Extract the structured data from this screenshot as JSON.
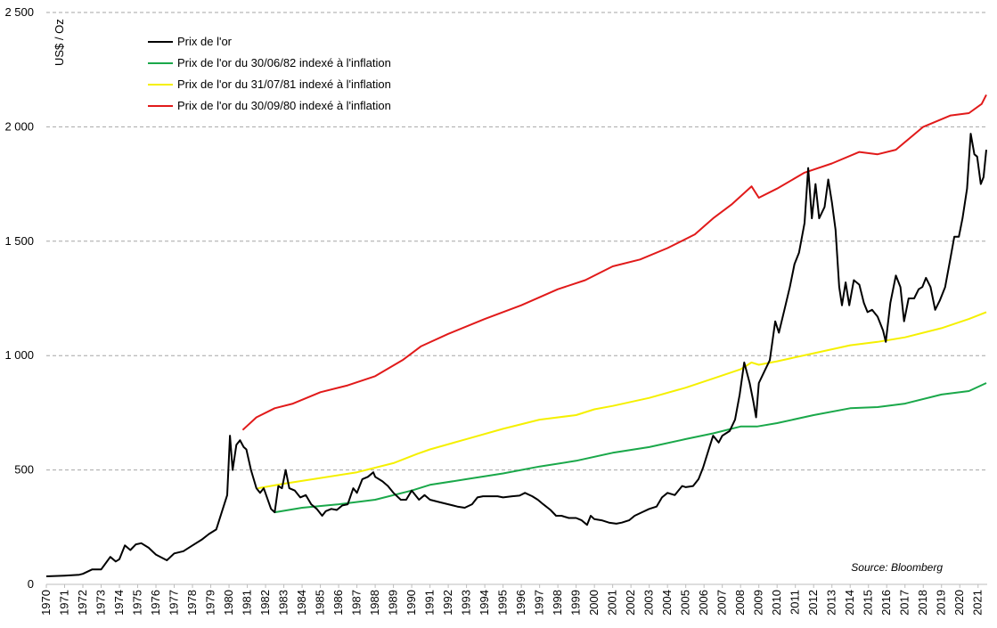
{
  "chart_data": {
    "type": "line",
    "ylabel": "US$ / Oz",
    "source": "Source: Bloomberg",
    "ylim": [
      0,
      2500
    ],
    "xlim": [
      1970,
      2021.5
    ],
    "grid": "horizontal dashed",
    "legend_position": "top-left",
    "y_ticks": [
      {
        "value": 0,
        "label": "0"
      },
      {
        "value": 500,
        "label": "500"
      },
      {
        "value": 1000,
        "label": "1 000"
      },
      {
        "value": 1500,
        "label": "1 500"
      },
      {
        "value": 2000,
        "label": "2 000"
      },
      {
        "value": 2500,
        "label": "2 500"
      }
    ],
    "x_ticks": [
      "1970",
      "1971",
      "1972",
      "1973",
      "1974",
      "1975",
      "1976",
      "1977",
      "1978",
      "1979",
      "1980",
      "1981",
      "1982",
      "1983",
      "1984",
      "1985",
      "1986",
      "1987",
      "1988",
      "1989",
      "1990",
      "1991",
      "1992",
      "1993",
      "1994",
      "1995",
      "1996",
      "1997",
      "1998",
      "1999",
      "2000",
      "2001",
      "2002",
      "2003",
      "2004",
      "2005",
      "2006",
      "2007",
      "2008",
      "2009",
      "2010",
      "2011",
      "2012",
      "2013",
      "2014",
      "2015",
      "2016",
      "2017",
      "2018",
      "2019",
      "2020",
      "2021"
    ],
    "series": [
      {
        "name": "Prix de l'or",
        "color": "#000000",
        "points": [
          [
            1970.0,
            35
          ],
          [
            1971.0,
            38
          ],
          [
            1971.8,
            42
          ],
          [
            1972.0,
            46
          ],
          [
            1972.5,
            65
          ],
          [
            1973.0,
            65
          ],
          [
            1973.5,
            120
          ],
          [
            1973.8,
            100
          ],
          [
            1974.0,
            110
          ],
          [
            1974.3,
            170
          ],
          [
            1974.6,
            150
          ],
          [
            1974.9,
            175
          ],
          [
            1975.2,
            180
          ],
          [
            1975.6,
            160
          ],
          [
            1976.0,
            130
          ],
          [
            1976.6,
            105
          ],
          [
            1977.0,
            135
          ],
          [
            1977.5,
            145
          ],
          [
            1978.0,
            170
          ],
          [
            1978.5,
            195
          ],
          [
            1978.9,
            220
          ],
          [
            1979.3,
            240
          ],
          [
            1979.7,
            340
          ],
          [
            1979.9,
            390
          ],
          [
            1980.05,
            650
          ],
          [
            1980.2,
            500
          ],
          [
            1980.4,
            610
          ],
          [
            1980.6,
            630
          ],
          [
            1980.8,
            600
          ],
          [
            1980.95,
            590
          ],
          [
            1981.2,
            500
          ],
          [
            1981.5,
            420
          ],
          [
            1981.7,
            400
          ],
          [
            1981.9,
            420
          ],
          [
            1982.3,
            330
          ],
          [
            1982.5,
            315
          ],
          [
            1982.7,
            430
          ],
          [
            1982.9,
            420
          ],
          [
            1983.1,
            500
          ],
          [
            1983.3,
            420
          ],
          [
            1983.6,
            410
          ],
          [
            1983.9,
            380
          ],
          [
            1984.2,
            390
          ],
          [
            1984.5,
            350
          ],
          [
            1984.8,
            330
          ],
          [
            1985.1,
            300
          ],
          [
            1985.3,
            320
          ],
          [
            1985.6,
            330
          ],
          [
            1985.9,
            325
          ],
          [
            1986.2,
            345
          ],
          [
            1986.5,
            350
          ],
          [
            1986.8,
            420
          ],
          [
            1987.0,
            400
          ],
          [
            1987.3,
            460
          ],
          [
            1987.6,
            470
          ],
          [
            1987.9,
            490
          ],
          [
            1988.0,
            470
          ],
          [
            1988.4,
            450
          ],
          [
            1988.7,
            430
          ],
          [
            1989.0,
            400
          ],
          [
            1989.4,
            370
          ],
          [
            1989.7,
            370
          ],
          [
            1990.0,
            410
          ],
          [
            1990.4,
            370
          ],
          [
            1990.7,
            390
          ],
          [
            1991.0,
            370
          ],
          [
            1991.5,
            360
          ],
          [
            1992.0,
            350
          ],
          [
            1992.5,
            340
          ],
          [
            1992.9,
            335
          ],
          [
            1993.3,
            350
          ],
          [
            1993.6,
            380
          ],
          [
            1993.9,
            385
          ],
          [
            1994.3,
            385
          ],
          [
            1994.7,
            385
          ],
          [
            1995.0,
            380
          ],
          [
            1995.5,
            385
          ],
          [
            1995.9,
            388
          ],
          [
            1996.2,
            400
          ],
          [
            1996.6,
            385
          ],
          [
            1996.9,
            370
          ],
          [
            1997.2,
            350
          ],
          [
            1997.6,
            325
          ],
          [
            1997.9,
            300
          ],
          [
            1998.2,
            300
          ],
          [
            1998.6,
            290
          ],
          [
            1999.0,
            290
          ],
          [
            1999.3,
            280
          ],
          [
            1999.6,
            260
          ],
          [
            1999.8,
            300
          ],
          [
            2000.0,
            285
          ],
          [
            2000.4,
            280
          ],
          [
            2000.8,
            270
          ],
          [
            2001.2,
            265
          ],
          [
            2001.5,
            270
          ],
          [
            2001.9,
            280
          ],
          [
            2002.2,
            300
          ],
          [
            2002.6,
            315
          ],
          [
            2003.0,
            330
          ],
          [
            2003.4,
            340
          ],
          [
            2003.7,
            380
          ],
          [
            2004.0,
            400
          ],
          [
            2004.4,
            390
          ],
          [
            2004.8,
            430
          ],
          [
            2005.0,
            425
          ],
          [
            2005.4,
            430
          ],
          [
            2005.7,
            460
          ],
          [
            2005.95,
            510
          ],
          [
            2006.3,
            600
          ],
          [
            2006.5,
            650
          ],
          [
            2006.8,
            620
          ],
          [
            2007.0,
            650
          ],
          [
            2007.4,
            670
          ],
          [
            2007.7,
            720
          ],
          [
            2007.95,
            830
          ],
          [
            2008.2,
            970
          ],
          [
            2008.5,
            880
          ],
          [
            2008.7,
            800
          ],
          [
            2008.85,
            730
          ],
          [
            2009.0,
            880
          ],
          [
            2009.3,
            930
          ],
          [
            2009.6,
            980
          ],
          [
            2009.9,
            1150
          ],
          [
            2010.1,
            1100
          ],
          [
            2010.4,
            1200
          ],
          [
            2010.7,
            1300
          ],
          [
            2010.95,
            1400
          ],
          [
            2011.2,
            1450
          ],
          [
            2011.5,
            1580
          ],
          [
            2011.7,
            1820
          ],
          [
            2011.9,
            1600
          ],
          [
            2012.1,
            1750
          ],
          [
            2012.3,
            1600
          ],
          [
            2012.6,
            1650
          ],
          [
            2012.8,
            1770
          ],
          [
            2013.0,
            1670
          ],
          [
            2013.2,
            1550
          ],
          [
            2013.4,
            1300
          ],
          [
            2013.55,
            1220
          ],
          [
            2013.75,
            1320
          ],
          [
            2013.95,
            1220
          ],
          [
            2014.2,
            1330
          ],
          [
            2014.5,
            1310
          ],
          [
            2014.75,
            1230
          ],
          [
            2014.95,
            1190
          ],
          [
            2015.2,
            1200
          ],
          [
            2015.5,
            1170
          ],
          [
            2015.8,
            1110
          ],
          [
            2015.95,
            1060
          ],
          [
            2016.2,
            1230
          ],
          [
            2016.5,
            1350
          ],
          [
            2016.75,
            1300
          ],
          [
            2016.95,
            1150
          ],
          [
            2017.2,
            1250
          ],
          [
            2017.5,
            1250
          ],
          [
            2017.75,
            1290
          ],
          [
            2017.95,
            1300
          ],
          [
            2018.15,
            1340
          ],
          [
            2018.4,
            1300
          ],
          [
            2018.65,
            1200
          ],
          [
            2018.9,
            1240
          ],
          [
            2019.2,
            1300
          ],
          [
            2019.45,
            1410
          ],
          [
            2019.7,
            1520
          ],
          [
            2019.95,
            1520
          ],
          [
            2020.15,
            1600
          ],
          [
            2020.4,
            1730
          ],
          [
            2020.6,
            1970
          ],
          [
            2020.8,
            1880
          ],
          [
            2020.95,
            1870
          ],
          [
            2021.15,
            1750
          ],
          [
            2021.3,
            1780
          ],
          [
            2021.45,
            1900
          ]
        ]
      },
      {
        "name": "Prix de l'or du 30/06/82 indexé à l'inflation",
        "color": "#1aa84a",
        "points": [
          [
            1982.5,
            315
          ],
          [
            1984,
            335
          ],
          [
            1986,
            350
          ],
          [
            1988,
            370
          ],
          [
            1990,
            410
          ],
          [
            1991,
            435
          ],
          [
            1993,
            460
          ],
          [
            1995,
            485
          ],
          [
            1997,
            515
          ],
          [
            1999,
            540
          ],
          [
            2001,
            575
          ],
          [
            2003,
            600
          ],
          [
            2005,
            635
          ],
          [
            2006.5,
            660
          ],
          [
            2008,
            690
          ],
          [
            2008.9,
            690
          ],
          [
            2010,
            705
          ],
          [
            2012,
            740
          ],
          [
            2014,
            770
          ],
          [
            2015.5,
            775
          ],
          [
            2017,
            790
          ],
          [
            2019,
            830
          ],
          [
            2020.5,
            845
          ],
          [
            2021.45,
            880
          ]
        ]
      },
      {
        "name": "Prix de l'or du 31/07/81 indexé à l'inflation",
        "color": "#f5f000",
        "points": [
          [
            1981.58,
            420
          ],
          [
            1983,
            440
          ],
          [
            1985,
            465
          ],
          [
            1987,
            490
          ],
          [
            1989,
            530
          ],
          [
            1990.3,
            570
          ],
          [
            1991,
            590
          ],
          [
            1993,
            635
          ],
          [
            1995,
            680
          ],
          [
            1997,
            720
          ],
          [
            1999,
            740
          ],
          [
            2000,
            765
          ],
          [
            2001,
            780
          ],
          [
            2003,
            815
          ],
          [
            2005,
            860
          ],
          [
            2006.5,
            900
          ],
          [
            2008,
            940
          ],
          [
            2008.6,
            970
          ],
          [
            2009,
            960
          ],
          [
            2010,
            975
          ],
          [
            2012,
            1010
          ],
          [
            2014,
            1045
          ],
          [
            2015.5,
            1060
          ],
          [
            2017,
            1080
          ],
          [
            2019,
            1120
          ],
          [
            2020.5,
            1160
          ],
          [
            2021.45,
            1190
          ]
        ]
      },
      {
        "name": "Prix de l'or du 30/09/80 indexé à l'inflation",
        "color": "#e11a1a",
        "points": [
          [
            1980.75,
            675
          ],
          [
            1981.5,
            730
          ],
          [
            1982.5,
            770
          ],
          [
            1983.5,
            790
          ],
          [
            1985,
            840
          ],
          [
            1986.5,
            870
          ],
          [
            1988,
            910
          ],
          [
            1989.5,
            980
          ],
          [
            1990.5,
            1040
          ],
          [
            1992,
            1095
          ],
          [
            1994,
            1160
          ],
          [
            1996,
            1220
          ],
          [
            1998,
            1290
          ],
          [
            1999.5,
            1330
          ],
          [
            2001,
            1390
          ],
          [
            2002.5,
            1420
          ],
          [
            2004,
            1470
          ],
          [
            2005.5,
            1530
          ],
          [
            2006.5,
            1600
          ],
          [
            2007.5,
            1660
          ],
          [
            2008.6,
            1740
          ],
          [
            2009,
            1690
          ],
          [
            2010,
            1730
          ],
          [
            2011.5,
            1800
          ],
          [
            2013,
            1840
          ],
          [
            2014.5,
            1890
          ],
          [
            2015.5,
            1880
          ],
          [
            2016.5,
            1900
          ],
          [
            2018,
            2000
          ],
          [
            2019.5,
            2050
          ],
          [
            2020.5,
            2060
          ],
          [
            2021.2,
            2100
          ],
          [
            2021.45,
            2140
          ]
        ]
      }
    ]
  }
}
